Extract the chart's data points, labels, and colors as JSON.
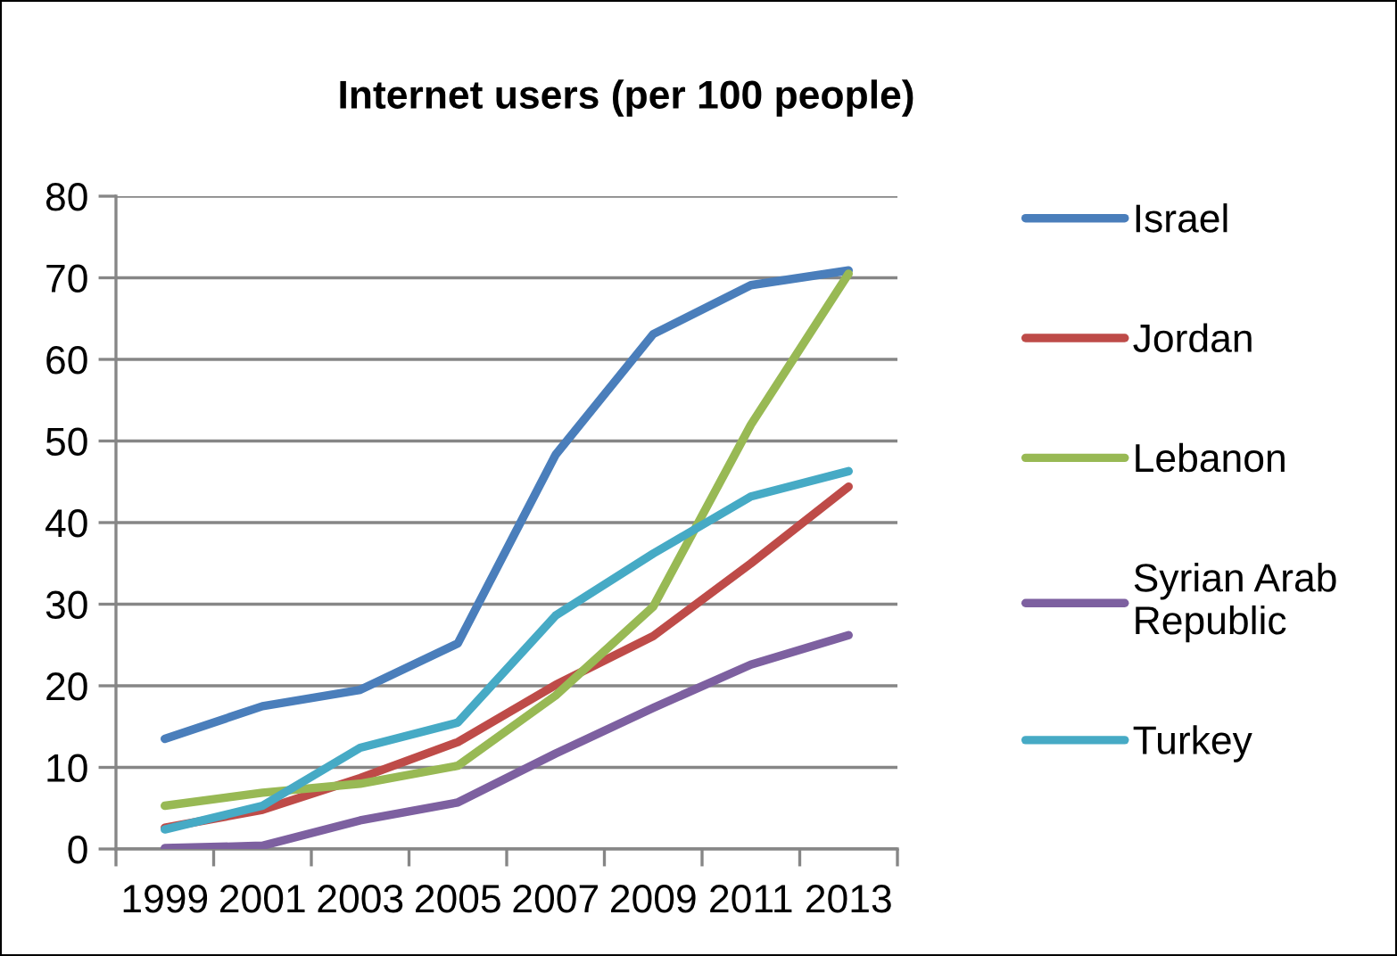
{
  "chart_data": {
    "type": "line",
    "title": "Internet users (per 100 people)",
    "categories": [
      "1999",
      "2001",
      "2003",
      "2005",
      "2007",
      "2009",
      "2011",
      "2013"
    ],
    "series": [
      {
        "name": "Israel",
        "color": "#4a7ebb",
        "values": [
          13.5,
          17.5,
          19.5,
          25.2,
          48.3,
          63.1,
          69.1,
          70.9
        ]
      },
      {
        "name": "Jordan",
        "color": "#be4b48",
        "values": [
          2.6,
          4.8,
          8.7,
          13.1,
          20.1,
          26.1,
          35.0,
          44.4
        ]
      },
      {
        "name": "Lebanon",
        "color": "#98b954",
        "values": [
          5.3,
          6.9,
          8.0,
          10.2,
          18.8,
          29.7,
          52.0,
          70.5
        ]
      },
      {
        "name": "Syrian Arab\nRepublic",
        "color": "#7d60a0",
        "values": [
          0.1,
          0.4,
          3.5,
          5.7,
          11.7,
          17.3,
          22.6,
          26.2
        ]
      },
      {
        "name": "Turkey",
        "color": "#46aac5",
        "values": [
          2.4,
          5.3,
          12.4,
          15.5,
          28.6,
          36.2,
          43.2,
          46.3
        ]
      }
    ],
    "ylim": [
      0,
      80
    ],
    "yticks": [
      0,
      10,
      20,
      30,
      40,
      50,
      60,
      70,
      80
    ],
    "grid": "y",
    "legend": "right",
    "marker": "none",
    "line_style": "solid"
  }
}
